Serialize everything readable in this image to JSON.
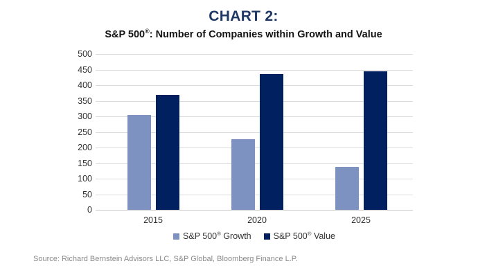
{
  "chart_data": {
    "type": "bar",
    "title": "CHART 2:",
    "subtitle": "S&P 500®: Number of Companies within Growth and Value",
    "categories": [
      "2015",
      "2020",
      "2025"
    ],
    "series": [
      {
        "name": "S&P 500® Growth",
        "key": "growth",
        "color": "#7D92C0",
        "values": [
          305,
          227,
          138
        ]
      },
      {
        "name": "S&P 500® Value",
        "key": "value",
        "color": "#002060",
        "values": [
          368,
          436,
          444
        ]
      }
    ],
    "xlabel": "",
    "ylabel": "",
    "ylim": [
      0,
      500
    ],
    "ytick_step": 50,
    "grid": true,
    "legend_position": "bottom",
    "title_color": "#1F3864",
    "gridline_color": "#DBDBDB",
    "axis_line_color": "#C8C8C8",
    "tick_label_color": "#303030"
  },
  "footer": {
    "source": "Source: Richard Bernstein Advisors LLC, S&P Global, Bloomberg Finance L.P."
  }
}
